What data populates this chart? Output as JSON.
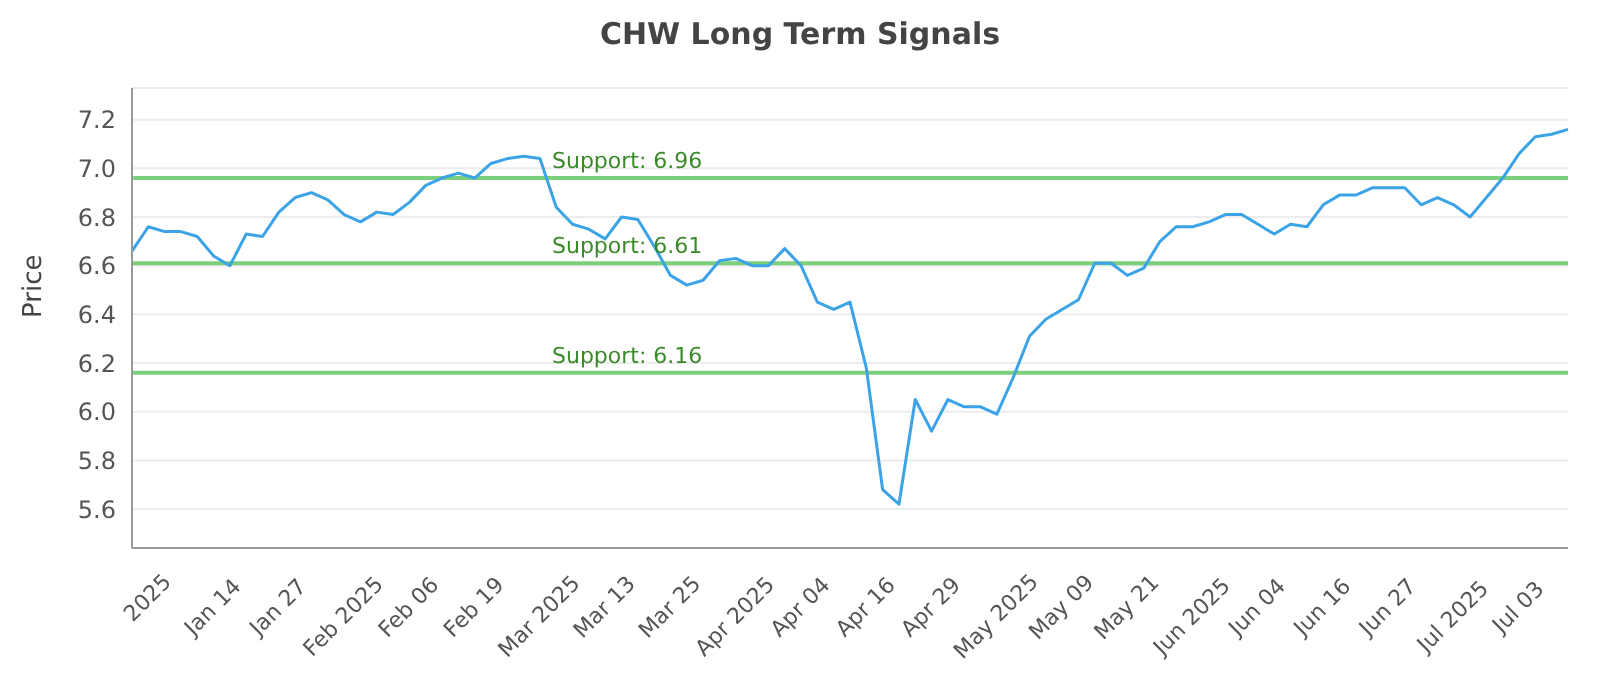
{
  "chart_data": {
    "type": "line",
    "title": "CHW Long Term Signals",
    "ylabel": "Price",
    "categories": [
      null,
      "2025",
      null,
      null,
      null,
      "Jan 14",
      null,
      null,
      null,
      "Jan 27",
      null,
      null,
      null,
      "Feb 2025",
      null,
      null,
      null,
      "Feb 06",
      null,
      null,
      null,
      "Feb 19",
      null,
      null,
      null,
      "Mar 2025",
      null,
      null,
      null,
      "Mar 13",
      null,
      null,
      null,
      "Mar 25",
      null,
      null,
      null,
      "Apr 2025",
      null,
      null,
      null,
      "Apr 04",
      null,
      null,
      null,
      "Apr 16",
      null,
      null,
      null,
      "Apr 29",
      null,
      null,
      null,
      "May 2025",
      null,
      null,
      null,
      "May 09",
      null,
      null,
      null,
      "May 21",
      null,
      null,
      null,
      "Jun 2025",
      null,
      null,
      null,
      "Jun 04",
      null,
      null,
      null,
      "Jun 16",
      null,
      null,
      null,
      "Jun 27",
      null,
      null,
      null,
      "Jul 2025",
      null,
      null,
      null,
      "Jul 03",
      null,
      null,
      null
    ],
    "series": [
      {
        "color": "#3ba3e6",
        "values": [
          6.66,
          6.76,
          6.74,
          6.74,
          6.72,
          6.64,
          6.6,
          6.73,
          6.72,
          6.82,
          6.88,
          6.9,
          6.87,
          6.81,
          6.78,
          6.82,
          6.81,
          6.86,
          6.93,
          6.96,
          6.98,
          6.96,
          7.02,
          7.04,
          7.05,
          7.04,
          6.84,
          6.77,
          6.75,
          6.71,
          6.8,
          6.79,
          6.68,
          6.56,
          6.52,
          6.54,
          6.62,
          6.63,
          6.6,
          6.6,
          6.67,
          6.6,
          6.45,
          6.42,
          6.45,
          6.18,
          5.68,
          5.62,
          6.05,
          5.92,
          6.05,
          6.02,
          6.02,
          5.99,
          6.14,
          6.31,
          6.38,
          6.42,
          6.46,
          6.61,
          6.61,
          6.56,
          6.59,
          6.7,
          6.76,
          6.76,
          6.78,
          6.81,
          6.81,
          6.77,
          6.73,
          6.77,
          6.76,
          6.85,
          6.89,
          6.89,
          6.92,
          6.92,
          6.92,
          6.85,
          6.88,
          6.85,
          6.8,
          6.88,
          6.96,
          7.06,
          7.13,
          7.14,
          7.16
        ]
      }
    ],
    "ylim": [
      5.44,
      7.33
    ],
    "yticks": [
      5.6,
      5.8,
      {
        "value": 6,
        "label": "6.0"
      },
      6.2,
      6.4,
      6.6,
      6.8,
      {
        "value": 7,
        "label": "7.0"
      },
      7.2
    ],
    "grid": "y",
    "marker": "none",
    "line_style": "solid",
    "ref_lines": [
      {
        "axis": "y",
        "value": 6.96,
        "label": "Support: 6.96",
        "color": "#7ccf7c"
      },
      {
        "axis": "y",
        "value": 6.61,
        "label": "Support: 6.61",
        "color": "#7ccf7c"
      },
      {
        "axis": "y",
        "value": 6.16,
        "label": "Support: 6.16",
        "color": "#7ccf7c"
      }
    ]
  }
}
